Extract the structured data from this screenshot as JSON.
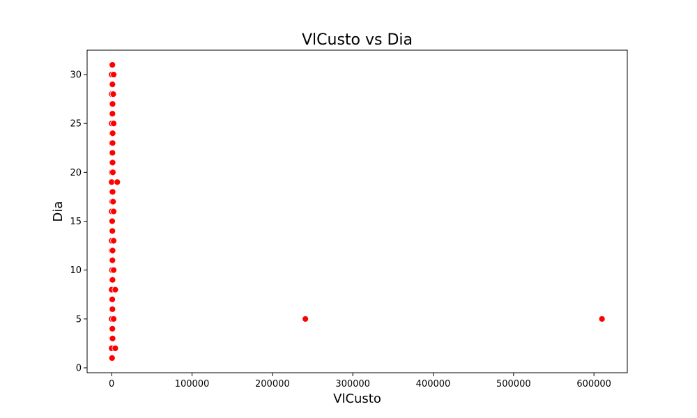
{
  "chart_data": {
    "type": "scatter",
    "title": "VlCusto vs Dia",
    "xlabel": "VlCusto",
    "ylabel": "Dia",
    "xlim": [
      -30500,
      641500
    ],
    "ylim": [
      -0.5,
      32.5
    ],
    "xticks": [
      0,
      100000,
      200000,
      300000,
      400000,
      500000,
      600000
    ],
    "xtick_labels": [
      "0",
      "100000",
      "200000",
      "300000",
      "400000",
      "500000",
      "600000"
    ],
    "yticks": [
      0,
      5,
      10,
      15,
      20,
      25,
      30
    ],
    "ytick_labels": [
      "0",
      "5",
      "10",
      "15",
      "20",
      "25",
      "30"
    ],
    "grid": false,
    "marker_color": "#ff0000",
    "marker_edge_color": "#ffffff",
    "series": [
      {
        "name": "VlCusto vs Dia",
        "points": [
          {
            "x": 0,
            "y": 1
          },
          {
            "x": 500,
            "y": 1
          },
          {
            "x": 0,
            "y": 2
          },
          {
            "x": 4500,
            "y": 2
          },
          {
            "x": 300,
            "y": 3
          },
          {
            "x": 1200,
            "y": 3
          },
          {
            "x": 200,
            "y": 4
          },
          {
            "x": 900,
            "y": 4
          },
          {
            "x": 0,
            "y": 5
          },
          {
            "x": 2500,
            "y": 5
          },
          {
            "x": 241000,
            "y": 5
          },
          {
            "x": 610000,
            "y": 5
          },
          {
            "x": 300,
            "y": 6
          },
          {
            "x": 1000,
            "y": 6
          },
          {
            "x": 0,
            "y": 7
          },
          {
            "x": 800,
            "y": 7
          },
          {
            "x": 0,
            "y": 8
          },
          {
            "x": 4500,
            "y": 8
          },
          {
            "x": 200,
            "y": 9
          },
          {
            "x": 1100,
            "y": 9
          },
          {
            "x": 400,
            "y": 10
          },
          {
            "x": 2500,
            "y": 10
          },
          {
            "x": 300,
            "y": 11
          },
          {
            "x": 1000,
            "y": 11
          },
          {
            "x": 0,
            "y": 12
          },
          {
            "x": 1200,
            "y": 12
          },
          {
            "x": 0,
            "y": 13
          },
          {
            "x": 2500,
            "y": 13
          },
          {
            "x": 300,
            "y": 14
          },
          {
            "x": 900,
            "y": 14
          },
          {
            "x": 0,
            "y": 15
          },
          {
            "x": 700,
            "y": 15
          },
          {
            "x": 0,
            "y": 16
          },
          {
            "x": 2500,
            "y": 16
          },
          {
            "x": 400,
            "y": 17
          },
          {
            "x": 1800,
            "y": 17
          },
          {
            "x": 300,
            "y": 18
          },
          {
            "x": 1200,
            "y": 18
          },
          {
            "x": 0,
            "y": 19
          },
          {
            "x": 7000,
            "y": 19
          },
          {
            "x": 0,
            "y": 20
          },
          {
            "x": 1500,
            "y": 20
          },
          {
            "x": 300,
            "y": 21
          },
          {
            "x": 1200,
            "y": 21
          },
          {
            "x": 300,
            "y": 22
          },
          {
            "x": 1000,
            "y": 22
          },
          {
            "x": 0,
            "y": 23
          },
          {
            "x": 1200,
            "y": 23
          },
          {
            "x": 300,
            "y": 24
          },
          {
            "x": 1300,
            "y": 24
          },
          {
            "x": 0,
            "y": 25
          },
          {
            "x": 2500,
            "y": 25
          },
          {
            "x": 300,
            "y": 26
          },
          {
            "x": 1000,
            "y": 26
          },
          {
            "x": 300,
            "y": 27
          },
          {
            "x": 1200,
            "y": 27
          },
          {
            "x": 0,
            "y": 28
          },
          {
            "x": 2000,
            "y": 28
          },
          {
            "x": 300,
            "y": 29
          },
          {
            "x": 1000,
            "y": 29
          },
          {
            "x": 0,
            "y": 30
          },
          {
            "x": 2500,
            "y": 30
          },
          {
            "x": 200,
            "y": 31
          },
          {
            "x": 900,
            "y": 31
          }
        ]
      }
    ]
  }
}
